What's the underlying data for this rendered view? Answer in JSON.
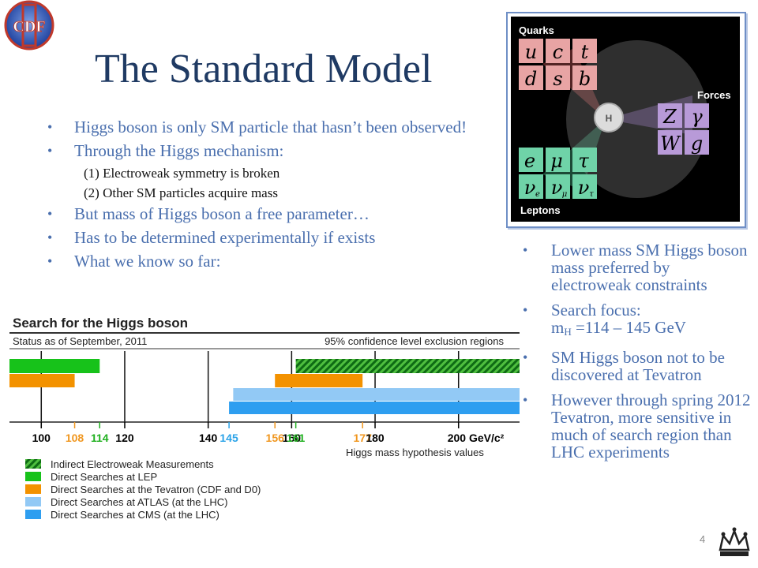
{
  "slide": {
    "title": "The Standard Model",
    "page_number": "4",
    "logo_text": "CDF"
  },
  "left_bullets": [
    {
      "text": "Higgs boson is only SM particle that hasn’t been observed!",
      "level": 1
    },
    {
      "text": "Through the Higgs mechanism:",
      "level": 1
    },
    {
      "text": "(1) Electroweak symmetry is broken",
      "level": 2
    },
    {
      "text": "(2) Other SM particles acquire mass",
      "level": 2
    },
    {
      "text": "But mass of Higgs boson a free parameter…",
      "level": 1
    },
    {
      "text": "Has to be determined experimentally if exists",
      "level": 1
    },
    {
      "text": "What we know so far:",
      "level": 1
    }
  ],
  "right_bullets": {
    "b1": "Lower mass SM Higgs boson mass preferred by electroweak constraints",
    "b2_line1": "Search focus:",
    "b2_m": "m",
    "b2_sub": "H",
    "b2_rest": " =114 – 145 GeV",
    "b3": "SM Higgs boson not to be discovered at Tevatron",
    "b4": "However through spring 2012 Tevatron, more sensitive in much of search region than LHC experiments"
  },
  "sm_figure": {
    "quarks_label": "Quarks",
    "forces_label": "Forces",
    "leptons_label": "Leptons",
    "higgs_label": "H",
    "quarks": [
      "u",
      "c",
      "t",
      "d",
      "s",
      "b"
    ],
    "forces": [
      "Z",
      "γ",
      "W",
      "g"
    ],
    "leptons": [
      "e",
      "μ",
      "τ",
      "ν",
      "ν",
      "ν"
    ],
    "neutrino_subs": [
      "e",
      "μ",
      "τ"
    ],
    "colors": {
      "quark": "#e8a4a4",
      "force": "#b89ad8",
      "lepton": "#6fd3a8",
      "higgs": "#dcdcdc",
      "bg": "#000000"
    }
  },
  "chart_data": {
    "type": "range-bars",
    "title": "Search for the Higgs boson",
    "subtitle": "Status as of September, 2011",
    "right_header": "95% confidence level exclusion regions",
    "xlabel": "Higgs mass hypothesis values",
    "x_unit": "GeV/c²",
    "x_range": [
      92,
      215
    ],
    "ticks": [
      {
        "value": 100,
        "label": "100",
        "color": "#000000"
      },
      {
        "value": 108,
        "label": "108",
        "color": "#f0961e"
      },
      {
        "value": 114,
        "label": "114",
        "color": "#20b020"
      },
      {
        "value": 120,
        "label": "120",
        "color": "#000000"
      },
      {
        "value": 140,
        "label": "140",
        "color": "#000000"
      },
      {
        "value": 145,
        "label": "145",
        "color": "#2ba3e8"
      },
      {
        "value": 156,
        "label": "156",
        "color": "#f0961e"
      },
      {
        "value": 160,
        "label": "160",
        "color": "#000000"
      },
      {
        "value": 161,
        "label": "161",
        "color": "#20b020"
      },
      {
        "value": 177,
        "label": "177",
        "color": "#f0961e"
      },
      {
        "value": 180,
        "label": "180",
        "color": "#000000"
      },
      {
        "value": 200,
        "label": "200 GeV/c²",
        "color": "#000000"
      }
    ],
    "vertical_lines": [
      100,
      120,
      140,
      160,
      180,
      200
    ],
    "series": [
      {
        "name": "Indirect Electroweak Measurements",
        "color": "#1f9f1f",
        "pattern": "hatch",
        "ranges": [
          [
            161,
            215
          ]
        ]
      },
      {
        "name": "Direct Searches at LEP",
        "color": "#17c21a",
        "pattern": "solid",
        "ranges": [
          [
            92,
            114
          ]
        ]
      },
      {
        "name": "Direct Searches at the Tevatron (CDF and D0)",
        "color": "#f39200",
        "pattern": "solid",
        "ranges": [
          [
            92,
            108
          ],
          [
            156,
            177
          ]
        ]
      },
      {
        "name": "Direct Searches at ATLAS (at the LHC)",
        "color": "#92c9f5",
        "pattern": "solid",
        "ranges": [
          [
            146,
            215
          ]
        ]
      },
      {
        "name": "Direct Searches at CMS (at the LHC)",
        "color": "#2e9ef0",
        "pattern": "solid",
        "ranges": [
          [
            145,
            215
          ]
        ]
      }
    ],
    "row_order": [
      1,
      0,
      2,
      3,
      4
    ],
    "legend_placement": "bottom-left"
  }
}
